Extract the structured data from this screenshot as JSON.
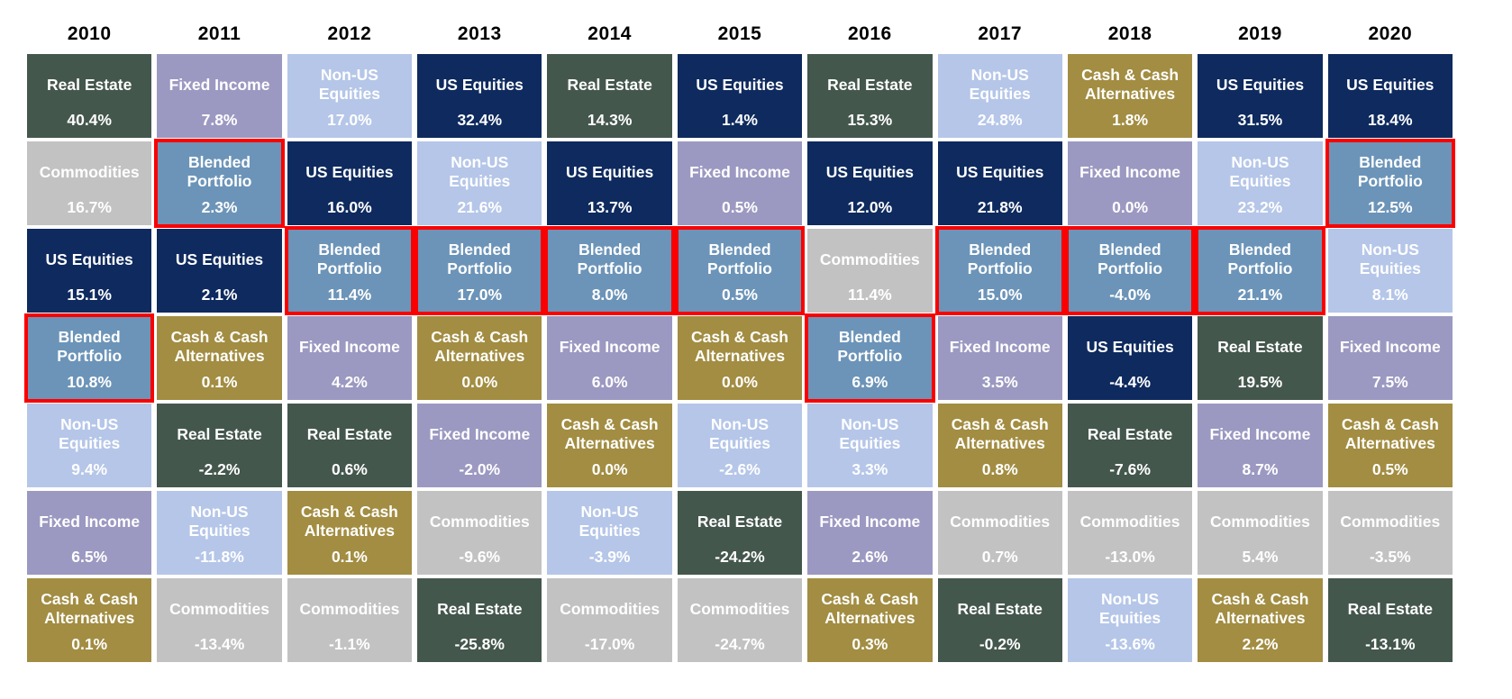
{
  "page": {
    "background_color": "#ffffff"
  },
  "chart_data": {
    "type": "table",
    "subtype": "asset-class-returns-quilt",
    "title": "",
    "categories": [
      "2010",
      "2011",
      "2012",
      "2013",
      "2014",
      "2015",
      "2016",
      "2017",
      "2018",
      "2019",
      "2020"
    ],
    "rows_per_column": 7,
    "legend_position": "none",
    "asset_colors": {
      "Real Estate": "#44574d",
      "Fixed Income": "#9b99c1",
      "Non-US Equities": "#b5c6e8",
      "US Equities": "#0e2a5e",
      "Commodities": "#c2c2c2",
      "Cash & Cash Alternatives": "#a28d42",
      "Blended Portfolio": "#6c94b8"
    },
    "text_color": "#ffffff",
    "highlight": {
      "asset": "Blended Portfolio",
      "color": "#fb0000"
    },
    "grid": [
      {
        "year": "2010",
        "cells": [
          {
            "asset": "Real Estate",
            "value": "40.4%"
          },
          {
            "asset": "Commodities",
            "value": "16.7%"
          },
          {
            "asset": "US Equities",
            "value": "15.1%"
          },
          {
            "asset": "Blended Portfolio",
            "value": "10.8%"
          },
          {
            "asset": "Non-US Equities",
            "value": "9.4%"
          },
          {
            "asset": "Fixed Income",
            "value": "6.5%"
          },
          {
            "asset": "Cash & Cash Alternatives",
            "value": "0.1%"
          }
        ]
      },
      {
        "year": "2011",
        "cells": [
          {
            "asset": "Fixed Income",
            "value": "7.8%"
          },
          {
            "asset": "Blended Portfolio",
            "value": "2.3%"
          },
          {
            "asset": "US Equities",
            "value": "2.1%"
          },
          {
            "asset": "Cash & Cash Alternatives",
            "value": "0.1%"
          },
          {
            "asset": "Real Estate",
            "value": "-2.2%"
          },
          {
            "asset": "Non-US Equities",
            "value": "-11.8%"
          },
          {
            "asset": "Commodities",
            "value": "-13.4%"
          }
        ]
      },
      {
        "year": "2012",
        "cells": [
          {
            "asset": "Non-US Equities",
            "value": "17.0%"
          },
          {
            "asset": "US Equities",
            "value": "16.0%"
          },
          {
            "asset": "Blended Portfolio",
            "value": "11.4%"
          },
          {
            "asset": "Fixed Income",
            "value": "4.2%"
          },
          {
            "asset": "Real Estate",
            "value": "0.6%"
          },
          {
            "asset": "Cash & Cash Alternatives",
            "value": "0.1%"
          },
          {
            "asset": "Commodities",
            "value": "-1.1%"
          }
        ]
      },
      {
        "year": "2013",
        "cells": [
          {
            "asset": "US Equities",
            "value": "32.4%"
          },
          {
            "asset": "Non-US Equities",
            "value": "21.6%"
          },
          {
            "asset": "Blended Portfolio",
            "value": "17.0%"
          },
          {
            "asset": "Cash & Cash Alternatives",
            "value": "0.0%"
          },
          {
            "asset": "Fixed Income",
            "value": "-2.0%"
          },
          {
            "asset": "Commodities",
            "value": "-9.6%"
          },
          {
            "asset": "Real Estate",
            "value": "-25.8%"
          }
        ]
      },
      {
        "year": "2014",
        "cells": [
          {
            "asset": "Real Estate",
            "value": "14.3%"
          },
          {
            "asset": "US Equities",
            "value": "13.7%"
          },
          {
            "asset": "Blended Portfolio",
            "value": "8.0%"
          },
          {
            "asset": "Fixed Income",
            "value": "6.0%"
          },
          {
            "asset": "Cash & Cash Alternatives",
            "value": "0.0%"
          },
          {
            "asset": "Non-US Equities",
            "value": "-3.9%"
          },
          {
            "asset": "Commodities",
            "value": "-17.0%"
          }
        ]
      },
      {
        "year": "2015",
        "cells": [
          {
            "asset": "US Equities",
            "value": "1.4%"
          },
          {
            "asset": "Fixed Income",
            "value": "0.5%"
          },
          {
            "asset": "Blended Portfolio",
            "value": "0.5%"
          },
          {
            "asset": "Cash & Cash Alternatives",
            "value": "0.0%"
          },
          {
            "asset": "Non-US Equities",
            "value": "-2.6%"
          },
          {
            "asset": "Real Estate",
            "value": "-24.2%"
          },
          {
            "asset": "Commodities",
            "value": "-24.7%"
          }
        ]
      },
      {
        "year": "2016",
        "cells": [
          {
            "asset": "Real Estate",
            "value": "15.3%"
          },
          {
            "asset": "US Equities",
            "value": "12.0%"
          },
          {
            "asset": "Commodities",
            "value": "11.4%"
          },
          {
            "asset": "Blended Portfolio",
            "value": "6.9%"
          },
          {
            "asset": "Non-US Equities",
            "value": "3.3%"
          },
          {
            "asset": "Fixed Income",
            "value": "2.6%"
          },
          {
            "asset": "Cash & Cash Alternatives",
            "value": "0.3%"
          }
        ]
      },
      {
        "year": "2017",
        "cells": [
          {
            "asset": "Non-US Equities",
            "value": "24.8%"
          },
          {
            "asset": "US Equities",
            "value": "21.8%"
          },
          {
            "asset": "Blended Portfolio",
            "value": "15.0%"
          },
          {
            "asset": "Fixed Income",
            "value": "3.5%"
          },
          {
            "asset": "Cash & Cash Alternatives",
            "value": "0.8%"
          },
          {
            "asset": "Commodities",
            "value": "0.7%"
          },
          {
            "asset": "Real Estate",
            "value": "-0.2%"
          }
        ]
      },
      {
        "year": "2018",
        "cells": [
          {
            "asset": "Cash & Cash Alternatives",
            "value": "1.8%"
          },
          {
            "asset": "Fixed Income",
            "value": "0.0%"
          },
          {
            "asset": "Blended Portfolio",
            "value": "-4.0%"
          },
          {
            "asset": "US Equities",
            "value": "-4.4%"
          },
          {
            "asset": "Real Estate",
            "value": "-7.6%"
          },
          {
            "asset": "Commodities",
            "value": "-13.0%"
          },
          {
            "asset": "Non-US Equities",
            "value": "-13.6%"
          }
        ]
      },
      {
        "year": "2019",
        "cells": [
          {
            "asset": "US Equities",
            "value": "31.5%"
          },
          {
            "asset": "Non-US Equities",
            "value": "23.2%"
          },
          {
            "asset": "Blended Portfolio",
            "value": "21.1%"
          },
          {
            "asset": "Real Estate",
            "value": "19.5%"
          },
          {
            "asset": "Fixed Income",
            "value": "8.7%"
          },
          {
            "asset": "Commodities",
            "value": "5.4%"
          },
          {
            "asset": "Cash & Cash Alternatives",
            "value": "2.2%"
          }
        ]
      },
      {
        "year": "2020",
        "cells": [
          {
            "asset": "US Equities",
            "value": "18.4%"
          },
          {
            "asset": "Blended Portfolio",
            "value": "12.5%"
          },
          {
            "asset": "Non-US Equities",
            "value": "8.1%"
          },
          {
            "asset": "Fixed Income",
            "value": "7.5%"
          },
          {
            "asset": "Cash & Cash Alternatives",
            "value": "0.5%"
          },
          {
            "asset": "Commodities",
            "value": "-3.5%"
          },
          {
            "asset": "Real Estate",
            "value": "-13.1%"
          }
        ]
      }
    ]
  }
}
